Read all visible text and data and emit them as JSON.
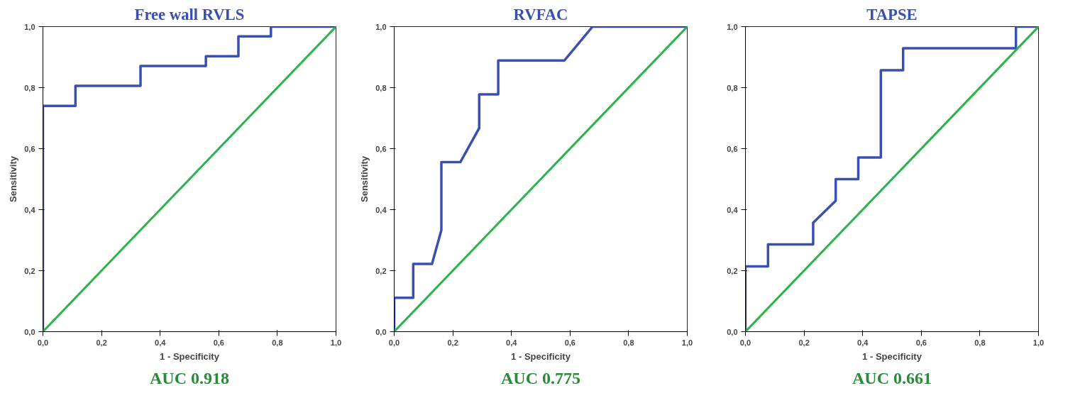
{
  "chart_data": [
    {
      "type": "line",
      "title": "Free wall RVLS",
      "xlabel": "1 - Specificity",
      "ylabel": "Sensitivity",
      "annotations": [
        "AUC 0.918"
      ],
      "xlim": [
        0,
        1
      ],
      "ylim": [
        0,
        1
      ],
      "grid": false,
      "marker": "none",
      "line_style": "solid",
      "xticks": [
        {
          "value": 0,
          "label": "0,0"
        },
        {
          "value": 0.2,
          "label": "0,2"
        },
        {
          "value": 0.4,
          "label": "0,4"
        },
        {
          "value": 0.6,
          "label": "0,6"
        },
        {
          "value": 0.8,
          "label": "0,8"
        },
        {
          "value": 1,
          "label": "1,0"
        }
      ],
      "yticks": [
        {
          "value": 0,
          "label": "0,0"
        },
        {
          "value": 0.2,
          "label": "0,2"
        },
        {
          "value": 0.4,
          "label": "0,4"
        },
        {
          "value": 0.6,
          "label": "0,6"
        },
        {
          "value": 0.8,
          "label": "0,8"
        },
        {
          "value": 1,
          "label": "1,0"
        }
      ],
      "series": [
        {
          "color": "#3a50b0",
          "x": [
            0,
            0,
            0.111,
            0.111,
            0.333,
            0.333,
            0.556,
            0.556,
            0.667,
            0.667,
            0.778,
            0.778,
            1
          ],
          "values": [
            0,
            0.74,
            0.74,
            0.806,
            0.806,
            0.871,
            0.871,
            0.903,
            0.903,
            0.968,
            0.968,
            1,
            1
          ]
        },
        {
          "color": "#2db34a",
          "x": [
            0,
            1
          ],
          "values": [
            0,
            1
          ]
        }
      ]
    },
    {
      "type": "line",
      "title": "RVFAC",
      "xlabel": "1 - Specificity",
      "ylabel": "Sensitivity",
      "annotations": [
        "AUC 0.775"
      ],
      "xlim": [
        0,
        1
      ],
      "ylim": [
        0,
        1
      ],
      "grid": false,
      "marker": "none",
      "line_style": "solid",
      "xticks": [
        {
          "value": 0,
          "label": "0,0"
        },
        {
          "value": 0.2,
          "label": "0,2"
        },
        {
          "value": 0.4,
          "label": "0,4"
        },
        {
          "value": 0.6,
          "label": "0,6"
        },
        {
          "value": 0.8,
          "label": "0,8"
        },
        {
          "value": 1,
          "label": "1,0"
        }
      ],
      "yticks": [
        {
          "value": 0,
          "label": "0,0"
        },
        {
          "value": 0.2,
          "label": "0,2"
        },
        {
          "value": 0.4,
          "label": "0,4"
        },
        {
          "value": 0.6,
          "label": "0,6"
        },
        {
          "value": 0.8,
          "label": "0,8"
        },
        {
          "value": 1,
          "label": "1,0"
        }
      ],
      "series": [
        {
          "color": "#3a50b0",
          "x": [
            0,
            0,
            0.065,
            0.065,
            0.129,
            0.161,
            0.161,
            0.226,
            0.29,
            0.29,
            0.355,
            0.355,
            0.581,
            0.677,
            1
          ],
          "values": [
            0,
            0.111,
            0.111,
            0.222,
            0.222,
            0.333,
            0.556,
            0.556,
            0.667,
            0.778,
            0.778,
            0.889,
            0.889,
            1,
            1
          ]
        },
        {
          "color": "#2db34a",
          "x": [
            0,
            1
          ],
          "values": [
            0,
            1
          ]
        }
      ]
    },
    {
      "type": "line",
      "title": "TAPSE",
      "xlabel": "1 - Specificity",
      "annotations": [
        "AUC 0.661"
      ],
      "xlim": [
        0,
        1
      ],
      "ylim": [
        0,
        1
      ],
      "grid": false,
      "marker": "none",
      "line_style": "solid",
      "xticks": [
        {
          "value": 0,
          "label": "0,0"
        },
        {
          "value": 0.2,
          "label": "0,2"
        },
        {
          "value": 0.4,
          "label": "0,4"
        },
        {
          "value": 0.6,
          "label": "0,6"
        },
        {
          "value": 0.8,
          "label": "0,8"
        },
        {
          "value": 1,
          "label": "1,0"
        }
      ],
      "yticks": [
        {
          "value": 0,
          "label": "0,0"
        },
        {
          "value": 0.2,
          "label": "0,2"
        },
        {
          "value": 0.4,
          "label": "0,4"
        },
        {
          "value": 0.6,
          "label": "0,6"
        },
        {
          "value": 0.8,
          "label": "0,8"
        },
        {
          "value": 1,
          "label": "1,0"
        }
      ],
      "series": [
        {
          "color": "#3a50b0",
          "x": [
            0,
            0,
            0.077,
            0.077,
            0.231,
            0.231,
            0.308,
            0.308,
            0.385,
            0.385,
            0.462,
            0.462,
            0.538,
            0.538,
            0.923,
            0.923,
            1
          ],
          "values": [
            0,
            0.214,
            0.214,
            0.286,
            0.286,
            0.357,
            0.429,
            0.5,
            0.5,
            0.571,
            0.571,
            0.857,
            0.857,
            0.929,
            0.929,
            1,
            1
          ]
        },
        {
          "color": "#2db34a",
          "x": [
            0,
            1
          ],
          "values": [
            0,
            1
          ]
        }
      ]
    }
  ]
}
